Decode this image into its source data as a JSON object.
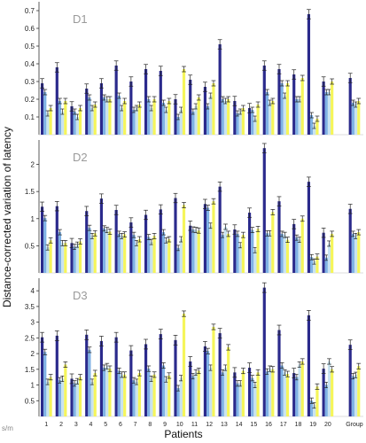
{
  "figure": {
    "ylabel": "Distance-corrected variation of latency",
    "xlabel": "Patients",
    "unit_label": "s/m",
    "patient_labels": [
      "1",
      "2",
      "3",
      "4",
      "5",
      "6",
      "7",
      "8",
      "9",
      "10",
      "11",
      "12",
      "13",
      "14",
      "15",
      "16",
      "17",
      "18",
      "19",
      "20"
    ],
    "group_label": "Group",
    "colors": [
      "#2b2a8c",
      "#7fb2e5",
      "#c9e3ef",
      "#f5f55a"
    ]
  },
  "chart_data": [
    {
      "type": "bar",
      "panel_label": "D1",
      "ylim": [
        0,
        0.75
      ],
      "yticks": [
        0.1,
        0.2,
        0.3,
        0.4,
        0.5,
        0.6,
        0.7
      ],
      "categories": [
        "1",
        "2",
        "3",
        "4",
        "5",
        "6",
        "7",
        "8",
        "9",
        "10",
        "11",
        "12",
        "13",
        "14",
        "15",
        "16",
        "17",
        "18",
        "19",
        "20",
        "Group"
      ],
      "series": [
        {
          "values": [
            0.29,
            0.38,
            0.16,
            0.26,
            0.29,
            0.39,
            0.3,
            0.37,
            0.36,
            0.2,
            0.31,
            0.27,
            0.51,
            0.19,
            0.15,
            0.39,
            0.37,
            0.34,
            0.68,
            0.3,
            0.32
          ]
        },
        {
          "values": [
            0.24,
            0.19,
            0.13,
            0.21,
            0.21,
            0.22,
            0.14,
            0.2,
            0.18,
            0.1,
            0.13,
            0.16,
            0.2,
            0.12,
            0.14,
            0.24,
            0.29,
            0.2,
            0.11,
            0.24,
            0.18
          ]
        },
        {
          "values": [
            0.12,
            0.13,
            0.1,
            0.15,
            0.2,
            0.15,
            0.15,
            0.15,
            0.14,
            0.14,
            0.16,
            0.22,
            0.19,
            0.13,
            0.09,
            0.18,
            0.22,
            0.2,
            0.05,
            0.24,
            0.17
          ]
        },
        {
          "values": [
            0.15,
            0.19,
            0.15,
            0.17,
            0.2,
            0.19,
            0.17,
            0.2,
            0.19,
            0.37,
            0.21,
            0.29,
            0.2,
            0.15,
            0.17,
            0.19,
            0.29,
            0.32,
            0.09,
            0.3,
            0.19
          ]
        }
      ]
    },
    {
      "type": "bar",
      "panel_label": "D2",
      "ylim": [
        0,
        2.45
      ],
      "yticks": [
        0.5,
        1,
        1.5,
        2
      ],
      "categories": [
        "1",
        "2",
        "3",
        "4",
        "5",
        "6",
        "7",
        "8",
        "9",
        "10",
        "11",
        "12",
        "13",
        "14",
        "15",
        "16",
        "17",
        "18",
        "19",
        "20",
        "Group"
      ],
      "series": [
        {
          "values": [
            1.22,
            1.23,
            0.55,
            1.14,
            1.37,
            1.16,
            0.93,
            1.07,
            1.17,
            1.38,
            0.87,
            1.27,
            1.59,
            0.8,
            1.11,
            2.3,
            1.32,
            0.9,
            1.68,
            0.74,
            1.18
          ]
        },
        {
          "values": [
            1.01,
            0.75,
            0.48,
            0.83,
            0.82,
            0.72,
            0.7,
            0.66,
            0.75,
            0.46,
            0.8,
            1.2,
            0.7,
            0.72,
            0.79,
            0.73,
            0.72,
            0.65,
            0.29,
            0.28,
            0.72
          ]
        },
        {
          "values": [
            0.47,
            0.55,
            0.52,
            0.68,
            0.79,
            0.68,
            0.55,
            0.57,
            0.6,
            0.62,
            0.79,
            0.87,
            0.85,
            0.51,
            0.42,
            0.73,
            0.7,
            0.61,
            0.21,
            0.54,
            0.68
          ]
        },
        {
          "values": [
            0.6,
            0.55,
            0.58,
            0.73,
            0.76,
            0.71,
            0.62,
            0.68,
            0.62,
            1.25,
            0.78,
            1.32,
            0.72,
            0.7,
            0.81,
            1.12,
            0.61,
            1.0,
            0.3,
            0.72,
            0.75
          ]
        }
      ]
    },
    {
      "type": "bar",
      "panel_label": "D3",
      "ylim": [
        0,
        4.4
      ],
      "yticks": [
        0.5,
        1,
        1.5,
        2,
        2.5,
        3,
        3.5,
        4
      ],
      "categories": [
        "1",
        "2",
        "3",
        "4",
        "5",
        "6",
        "7",
        "8",
        "9",
        "10",
        "11",
        "12",
        "13",
        "14",
        "15",
        "16",
        "17",
        "18",
        "19",
        "20",
        "Group"
      ],
      "series": [
        {
          "values": [
            2.52,
            2.57,
            1.2,
            2.6,
            2.4,
            2.52,
            2.1,
            2.3,
            2.62,
            2.43,
            1.75,
            2.23,
            2.65,
            1.4,
            1.55,
            4.1,
            2.75,
            1.38,
            3.22,
            1.52,
            2.28
          ]
        },
        {
          "values": [
            2.05,
            1.15,
            1.05,
            2.12,
            1.55,
            1.45,
            1.15,
            1.52,
            1.62,
            0.9,
            1.28,
            2.08,
            1.4,
            1.05,
            1.22,
            1.43,
            1.62,
            1.25,
            0.5,
            1.0,
            1.28
          ]
        },
        {
          "values": [
            1.1,
            1.2,
            1.12,
            1.1,
            1.6,
            1.33,
            1.1,
            1.2,
            1.18,
            1.22,
            1.4,
            1.55,
            1.55,
            1.05,
            1.0,
            1.52,
            1.4,
            1.65,
            0.35,
            1.75,
            1.32
          ]
        },
        {
          "values": [
            1.25,
            1.65,
            1.25,
            1.38,
            1.52,
            1.33,
            1.38,
            1.33,
            1.3,
            3.27,
            1.45,
            2.85,
            2.2,
            1.45,
            1.4,
            1.5,
            1.35,
            1.75,
            0.95,
            1.5,
            1.6
          ]
        }
      ]
    }
  ]
}
